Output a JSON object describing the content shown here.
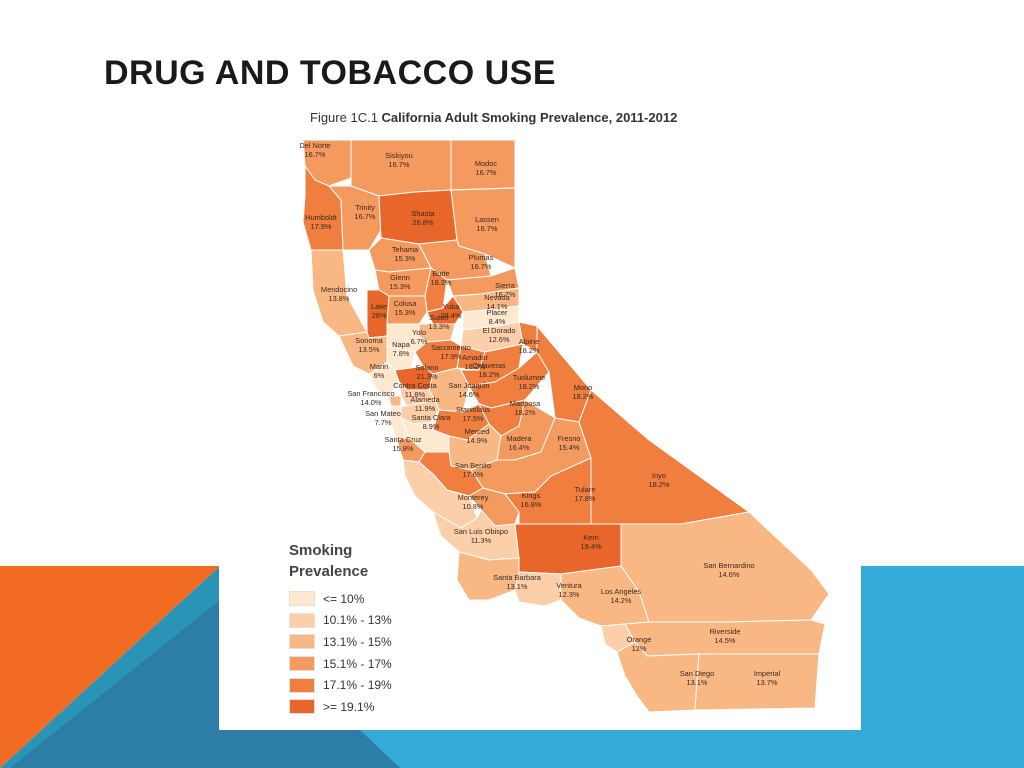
{
  "slide": {
    "title": "DRUG AND TOBACCO USE"
  },
  "figure": {
    "number": "Figure 1C.1",
    "title": "California Adult Smoking Prevalence, 2011-2012"
  },
  "colors": {
    "orange_accent": "#f26b22",
    "blue_accent": "#35a9d8",
    "dark_blue_accent": "#2d7ea6",
    "teal_accent": "#2a94b6",
    "county_border": "#ffffff"
  },
  "legend": {
    "title_line1": "Smoking",
    "title_line2": "Prevalence",
    "bins": [
      {
        "label": "<= 10%",
        "color": "#fde8d0"
      },
      {
        "label": "10.1% - 13%",
        "color": "#fbcfa9"
      },
      {
        "label": "13.1% - 15%",
        "color": "#f9b784"
      },
      {
        "label": "15.1% - 17%",
        "color": "#f59a5f"
      },
      {
        "label": "17.1% - 19%",
        "color": "#ef7e3f"
      },
      {
        "label": ">= 19.1%",
        "color": "#e8662a"
      }
    ]
  },
  "counties": [
    {
      "name": "Del Norte",
      "value": "16.7%",
      "pct": 16.7
    },
    {
      "name": "Siskiyou",
      "value": "16.7%",
      "pct": 16.7
    },
    {
      "name": "Modoc",
      "value": "16.7%",
      "pct": 16.7
    },
    {
      "name": "Humboldt",
      "value": "17.9%",
      "pct": 17.9
    },
    {
      "name": "Trinity",
      "value": "16.7%",
      "pct": 16.7
    },
    {
      "name": "Shasta",
      "value": "26.8%",
      "pct": 26.8
    },
    {
      "name": "Lassen",
      "value": "16.7%",
      "pct": 16.7
    },
    {
      "name": "Tehama",
      "value": "15.3%",
      "pct": 15.3
    },
    {
      "name": "Plumas",
      "value": "16.7%",
      "pct": 16.7
    },
    {
      "name": "Mendocino",
      "value": "13.8%",
      "pct": 13.8
    },
    {
      "name": "Glenn",
      "value": "15.3%",
      "pct": 15.3
    },
    {
      "name": "Butte",
      "value": "18.2%",
      "pct": 18.2
    },
    {
      "name": "Sierra",
      "value": "16.7%",
      "pct": 16.7
    },
    {
      "name": "Nevada",
      "value": "14.1%",
      "pct": 14.1
    },
    {
      "name": "Lake",
      "value": "28%",
      "pct": 28
    },
    {
      "name": "Colusa",
      "value": "15.3%",
      "pct": 15.3
    },
    {
      "name": "Yuba",
      "value": "28.4%",
      "pct": 28.4
    },
    {
      "name": "Placer",
      "value": "8.4%",
      "pct": 8.4
    },
    {
      "name": "Sutter",
      "value": "13.3%",
      "pct": 13.3
    },
    {
      "name": "Yolo",
      "value": "6.7%",
      "pct": 6.7
    },
    {
      "name": "El Dorado",
      "value": "12.6%",
      "pct": 12.6
    },
    {
      "name": "Sonoma",
      "value": "13.5%",
      "pct": 13.5
    },
    {
      "name": "Napa",
      "value": "7.8%",
      "pct": 7.8
    },
    {
      "name": "Sacramento",
      "value": "17.9%",
      "pct": 17.9
    },
    {
      "name": "Alpine",
      "value": "18.2%",
      "pct": 18.2
    },
    {
      "name": "Amador",
      "value": "18.2%",
      "pct": 18.2
    },
    {
      "name": "Solano",
      "value": "21.3%",
      "pct": 21.3
    },
    {
      "name": "Marin",
      "value": "6%",
      "pct": 6
    },
    {
      "name": "Calaveras",
      "value": "18.2%",
      "pct": 18.2
    },
    {
      "name": "Contra Costa",
      "value": "11.8%",
      "pct": 11.8
    },
    {
      "name": "San Joaquin",
      "value": "14.6%",
      "pct": 14.6
    },
    {
      "name": "Tuolumne",
      "value": "18.2%",
      "pct": 18.2
    },
    {
      "name": "Mono",
      "value": "18.2%",
      "pct": 18.2
    },
    {
      "name": "San Francisco",
      "value": "14.0%",
      "pct": 14.0
    },
    {
      "name": "Alameda",
      "value": "11.9%",
      "pct": 11.9
    },
    {
      "name": "San Mateo",
      "value": "7.7%",
      "pct": 7.7
    },
    {
      "name": "Stanislaus",
      "value": "17.5%",
      "pct": 17.5
    },
    {
      "name": "Mariposa",
      "value": "18.2%",
      "pct": 18.2
    },
    {
      "name": "Santa Clara",
      "value": "8.9%",
      "pct": 8.9
    },
    {
      "name": "Merced",
      "value": "14.9%",
      "pct": 14.9
    },
    {
      "name": "Madera",
      "value": "16.4%",
      "pct": 16.4
    },
    {
      "name": "Fresno",
      "value": "15.4%",
      "pct": 15.4
    },
    {
      "name": "Santa Cruz",
      "value": "15.8%",
      "pct": 15.8
    },
    {
      "name": "San Benito",
      "value": "17.6%",
      "pct": 17.6
    },
    {
      "name": "Inyo",
      "value": "18.2%",
      "pct": 18.2
    },
    {
      "name": "Monterey",
      "value": "10.8%",
      "pct": 10.8
    },
    {
      "name": "Kings",
      "value": "16.8%",
      "pct": 16.8
    },
    {
      "name": "Tulare",
      "value": "17.8%",
      "pct": 17.8
    },
    {
      "name": "San Luis Obispo",
      "value": "11.3%",
      "pct": 11.3
    },
    {
      "name": "Kern",
      "value": "19.4%",
      "pct": 19.4
    },
    {
      "name": "San Bernardino",
      "value": "14.6%",
      "pct": 14.6
    },
    {
      "name": "Santa Barbara",
      "value": "13.1%",
      "pct": 13.1
    },
    {
      "name": "Ventura",
      "value": "12.3%",
      "pct": 12.3
    },
    {
      "name": "Los Angeles",
      "value": "14.2%",
      "pct": 14.2
    },
    {
      "name": "Orange",
      "value": "12%",
      "pct": 12
    },
    {
      "name": "Riverside",
      "value": "14.5%",
      "pct": 14.5
    },
    {
      "name": "San Diego",
      "value": "13.1%",
      "pct": 13.1
    },
    {
      "name": "Imperial",
      "value": "13.7%",
      "pct": 13.7
    }
  ]
}
